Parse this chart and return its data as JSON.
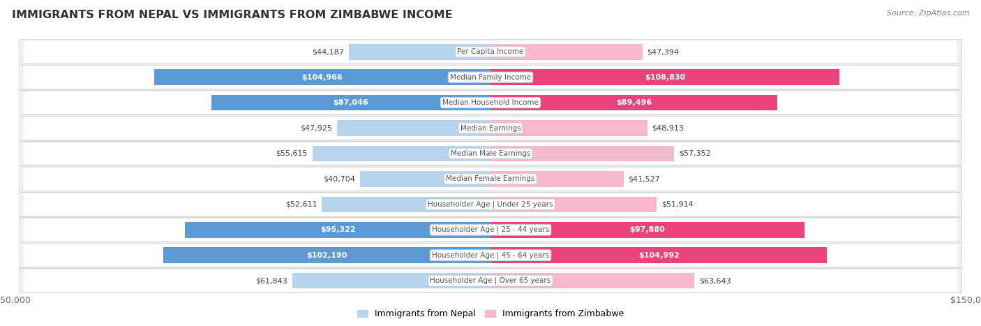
{
  "title": "IMMIGRANTS FROM NEPAL VS IMMIGRANTS FROM ZIMBABWE INCOME",
  "source": "Source: ZipAtlas.com",
  "categories": [
    "Per Capita Income",
    "Median Family Income",
    "Median Household Income",
    "Median Earnings",
    "Median Male Earnings",
    "Median Female Earnings",
    "Householder Age | Under 25 years",
    "Householder Age | 25 - 44 years",
    "Householder Age | 45 - 64 years",
    "Householder Age | Over 65 years"
  ],
  "nepal_values": [
    44187,
    104966,
    87046,
    47925,
    55615,
    40704,
    52611,
    95322,
    102190,
    61843
  ],
  "zimbabwe_values": [
    47394,
    108830,
    89496,
    48913,
    57352,
    41527,
    51914,
    97880,
    104992,
    63643
  ],
  "nepal_labels": [
    "$44,187",
    "$104,966",
    "$87,046",
    "$47,925",
    "$55,615",
    "$40,704",
    "$52,611",
    "$95,322",
    "$102,190",
    "$61,843"
  ],
  "zimbabwe_labels": [
    "$47,394",
    "$108,830",
    "$89,496",
    "$48,913",
    "$57,352",
    "$41,527",
    "$51,914",
    "$97,880",
    "$104,992",
    "$63,643"
  ],
  "nepal_color_light": "#b8d4ec",
  "nepal_color_dark": "#5b9bd5",
  "zimbabwe_color_light": "#f7b8cc",
  "zimbabwe_color_dark": "#e8437a",
  "nepal_threshold": 70000,
  "zimbabwe_threshold": 70000,
  "bar_height": 0.62,
  "max_value": 150000,
  "row_bg": "#f2f2f2",
  "row_fg": "#fafafa",
  "legend_nepal": "Immigrants from Nepal",
  "legend_zimbabwe": "Immigrants from Zimbabwe"
}
